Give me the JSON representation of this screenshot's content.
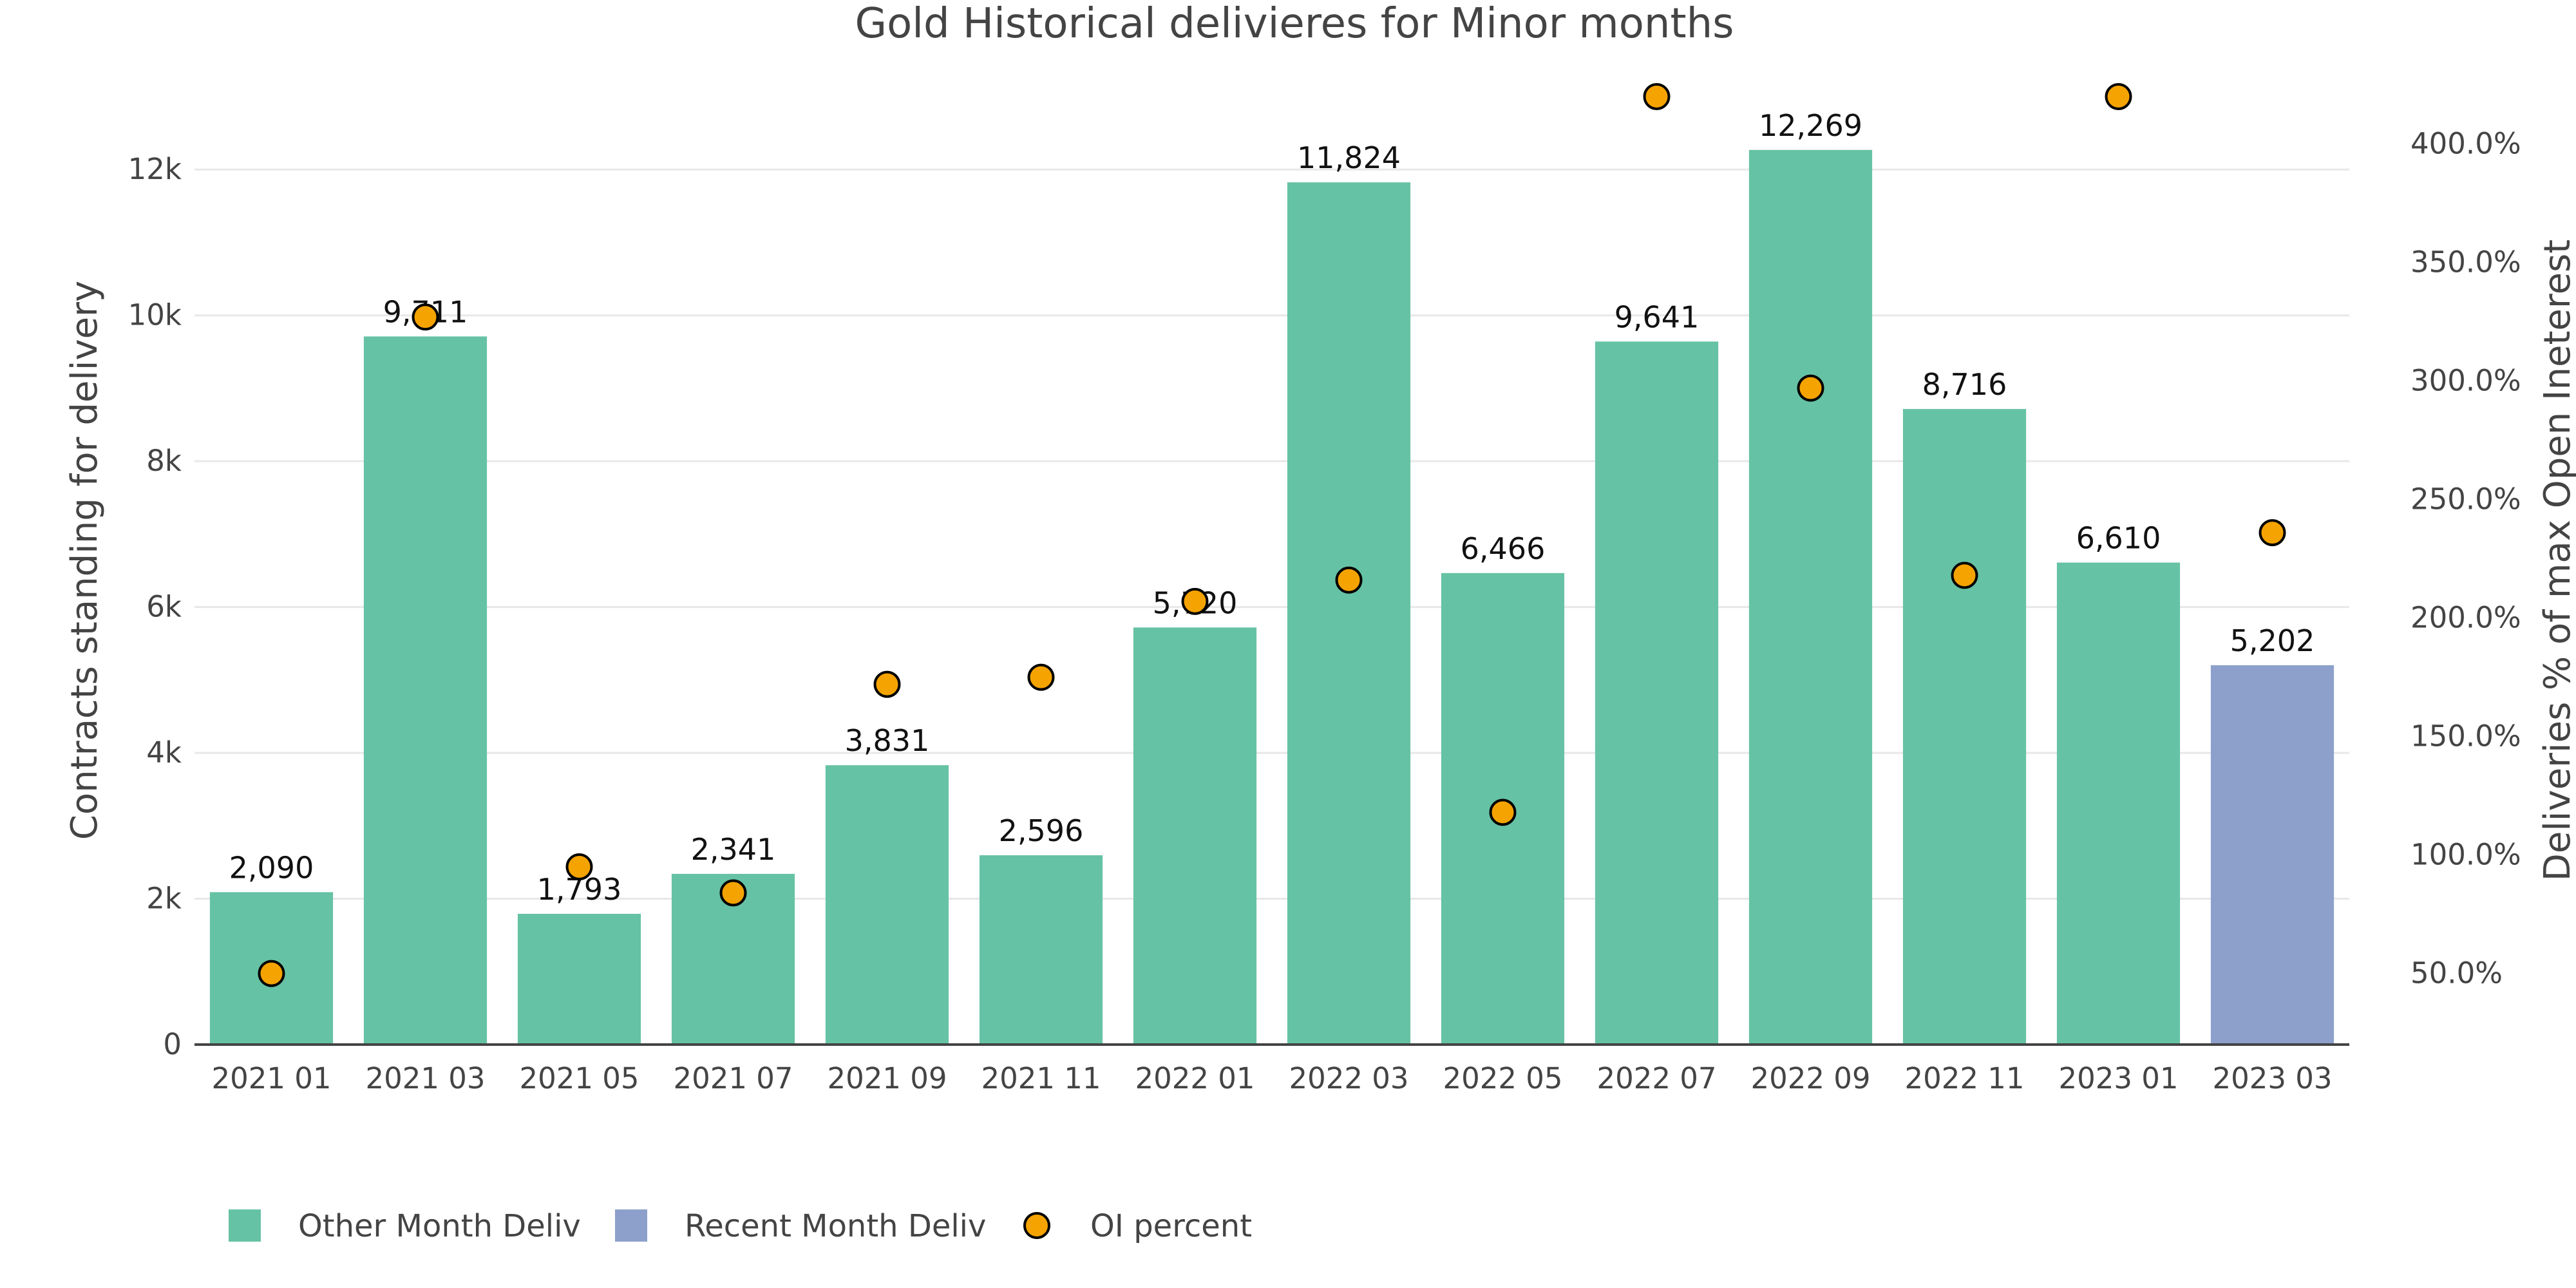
{
  "chart_data": {
    "type": "bar",
    "title": "Gold Historical delivieres for Minor months",
    "ylabel": "Contracts standing for delivery",
    "y2label": "Deliveries % of max Open Ineterest",
    "ylim": [
      0,
      13000
    ],
    "y2lim": [
      20,
      420
    ],
    "yticks": [
      0,
      2000,
      4000,
      6000,
      8000,
      10000,
      12000
    ],
    "ytick_labels": [
      "0",
      "2k",
      "4k",
      "6k",
      "8k",
      "10k",
      "12k"
    ],
    "y2ticks": [
      50,
      100,
      150,
      200,
      250,
      300,
      350,
      400
    ],
    "y2tick_labels": [
      "50.0%",
      "100.0%",
      "150.0%",
      "200.0%",
      "250.0%",
      "300.0%",
      "350.0%",
      "400.0%"
    ],
    "categories": [
      "2021 01",
      "2021 03",
      "2021 05",
      "2021 07",
      "2021 09",
      "2021 11",
      "2022 01",
      "2022 03",
      "2022 05",
      "2022 07",
      "2022 09",
      "2022 11",
      "2023 01",
      "2023 03"
    ],
    "values": [
      2090,
      9711,
      1793,
      2341,
      3831,
      2596,
      5720,
      11824,
      6466,
      9641,
      12269,
      8716,
      6610,
      5202
    ],
    "value_labels": [
      "2,090",
      "9,711",
      "1,793",
      "2,341",
      "3,831",
      "2,596",
      "5,720",
      "11,824",
      "6,466",
      "9,641",
      "12,269",
      "8,716",
      "6,610",
      "5,202"
    ],
    "bar_series": [
      "Other Month Deliv",
      "Other Month Deliv",
      "Other Month Deliv",
      "Other Month Deliv",
      "Other Month Deliv",
      "Other Month Deliv",
      "Other Month Deliv",
      "Other Month Deliv",
      "Other Month Deliv",
      "Other Month Deliv",
      "Other Month Deliv",
      "Other Month Deliv",
      "Other Month Deliv",
      "Recent Month Deliv"
    ],
    "oi_percent": [
      50,
      327,
      95,
      84,
      172,
      175,
      207,
      216,
      118,
      420,
      297,
      218,
      420,
      236
    ],
    "legend": [
      {
        "name": "Other Month Deliv",
        "color": "#66c2a5",
        "marker": "square"
      },
      {
        "name": "Recent Month Deliv",
        "color": "#8da0cb",
        "marker": "square"
      },
      {
        "name": "OI percent",
        "color": "#f5a300",
        "marker": "circle"
      }
    ],
    "legend_position": "bottom-left",
    "colors": {
      "other": "#66c2a5",
      "recent": "#8da0cb",
      "oi": "#f5a300",
      "oi_outline": "#000000",
      "axis": "#444444",
      "grid": "#e8e8e8"
    }
  }
}
